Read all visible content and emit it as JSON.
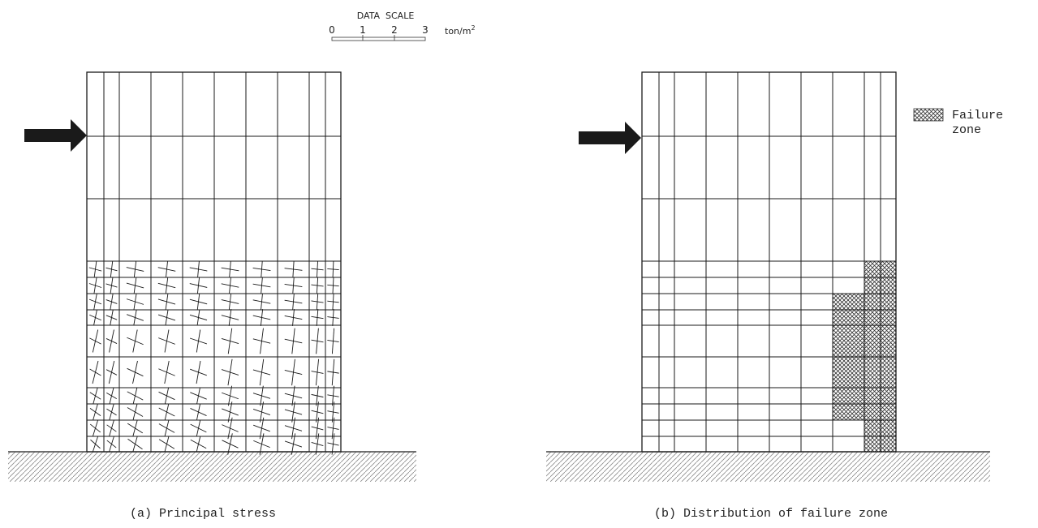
{
  "scale": {
    "title": "DATA  SCALE",
    "ticks": [
      "0",
      "1",
      "2",
      "3"
    ],
    "unit": "ton/m",
    "unit_sup": "2"
  },
  "legend": {
    "line1": "Failure",
    "line2": "zone"
  },
  "captions": {
    "a": "(a) Principal stress",
    "b": "(b) Distribution of failure zone"
  },
  "colors": {
    "ink": "#1a1a1a",
    "hatch": "#777777"
  },
  "mesh": {
    "columns": 9,
    "upper_rows": 3,
    "lower_rows": 12
  },
  "failure_zone": {
    "cells": [
      [
        8,
        1
      ],
      [
        8,
        2
      ],
      [
        8,
        3
      ],
      [
        8,
        4
      ],
      [
        8,
        5
      ],
      [
        8,
        6
      ],
      [
        8,
        7
      ],
      [
        8,
        8
      ],
      [
        8,
        9
      ],
      [
        8,
        10
      ],
      [
        8,
        11
      ],
      [
        7,
        3
      ],
      [
        7,
        4
      ],
      [
        7,
        5
      ],
      [
        7,
        6
      ],
      [
        7,
        7
      ],
      [
        7,
        8
      ]
    ]
  }
}
